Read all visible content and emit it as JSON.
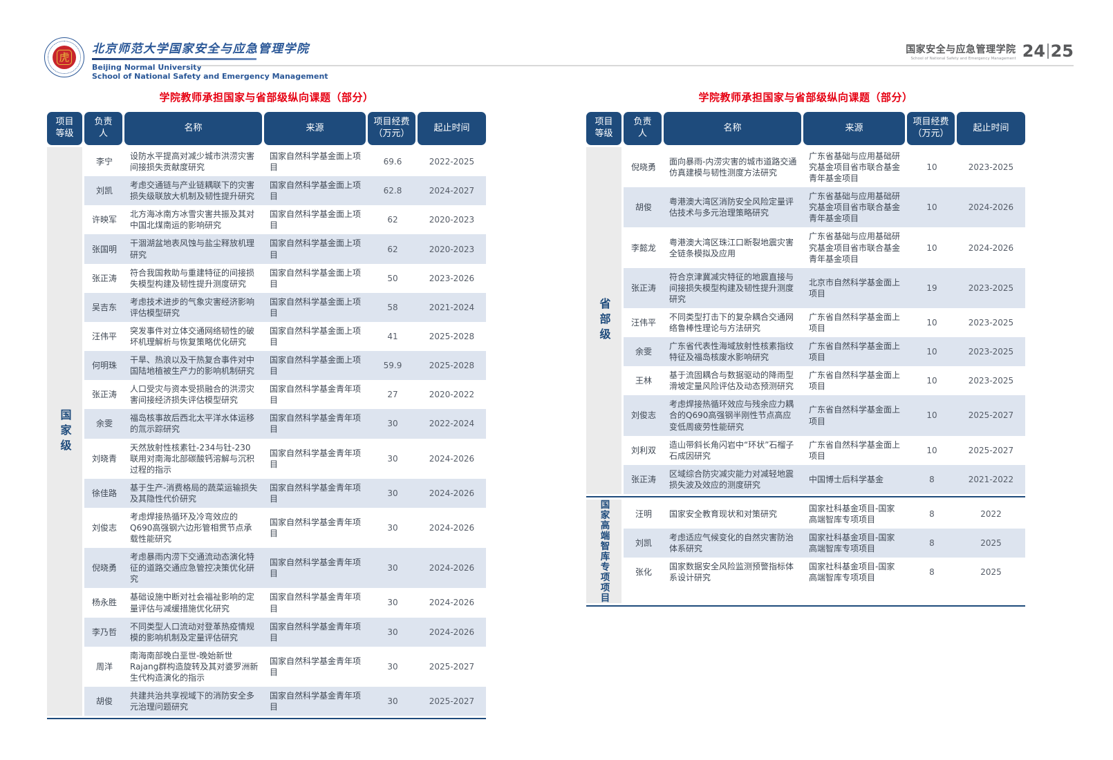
{
  "header": {
    "logo": {
      "seal_glyph": "虎",
      "cn_title": "北京师范大学国家安全与应急管理学院",
      "en_line1": "Beijing Normal University",
      "en_line2": "School of National Safety and Emergency Management"
    },
    "right": {
      "cn": "国家安全与应急管理学院",
      "en": "School of National Safety and Emergency Management",
      "page_left": "24",
      "page_right": "25"
    }
  },
  "colors": {
    "navy": "#1e4b7c",
    "title_red": "#e60012",
    "row_alt": "#dde4ef",
    "category_bg": "#ebebeb"
  },
  "tables": [
    {
      "title": "学院教师承担国家与省部级纵向课题（部分）",
      "columns": [
        "项目\n等级",
        "负责\n人",
        "名称",
        "来源",
        "项目经费\n（万元）",
        "起止时间"
      ],
      "sections": [
        {
          "category": "国家级",
          "rows": [
            [
              "李宁",
              "设防水平提高对减少城市洪涝灾害间接损失贡献度研究",
              "国家自然科学基金面上项目",
              "69.6",
              "2022-2025"
            ],
            [
              "刘凯",
              "考虑交通链与产业链耦联下的灾害损失级联放大机制及韧性提升研究",
              "国家自然科学基金面上项目",
              "62.8",
              "2024-2027"
            ],
            [
              "许映军",
              "北方海冰南方冰雪灾害共振及其对中国北煤南运的影响研究",
              "国家自然科学基金面上项目",
              "62",
              "2020-2023"
            ],
            [
              "张国明",
              "干涸湖盆地表风蚀与盐尘释放机理研究",
              "国家自然科学基金面上项目",
              "62",
              "2020-2023"
            ],
            [
              "张正涛",
              "符合我国救助与重建特征的间接损失模型构建及韧性提升测度研究",
              "国家自然科学基金面上项目",
              "50",
              "2023-2026"
            ],
            [
              "吴吉东",
              "考虑技术进步的气象灾害经济影响评估模型研究",
              "国家自然科学基金面上项目",
              "58",
              "2021-2024"
            ],
            [
              "汪伟平",
              "突发事件对立体交通网络韧性的破坏机理解析与恢复策略优化研究",
              "国家自然科学基金面上项目",
              "41",
              "2025-2028"
            ],
            [
              "何明珠",
              "干旱、热浪以及干热复合事件对中国陆地植被生产力的影响机制研究",
              "国家自然科学基金面上项目",
              "59.9",
              "2025-2028"
            ],
            [
              "张正涛",
              "人口受灾与资本受损融合的洪涝灾害间接经济损失评估模型研究",
              "国家自然科学基金青年项目",
              "27",
              "2020-2022"
            ],
            [
              "余雯",
              "福岛核事故后西北太平洋水体运移的氚示踪研究",
              "国家自然科学基金青年项目",
              "30",
              "2022-2024"
            ],
            [
              "刘晓青",
              "天然放射性核素钍-234与钍-230联用对南海北部碳酸钙溶解与沉积过程的指示",
              "国家自然科学基金青年项目",
              "30",
              "2024-2026"
            ],
            [
              "徐佳路",
              "基于生产-消费格局的蔬菜运输损失及其隐性代价研究",
              "国家自然科学基金青年项目",
              "30",
              "2024-2026"
            ],
            [
              "刘俊志",
              "考虑焊接热循环及冷弯效应的Q690高强钢六边形管相贯节点承载性能研究",
              "国家自然科学基金青年项目",
              "30",
              "2024-2026"
            ],
            [
              "倪晓勇",
              "考虑暴雨内涝下交通流动态演化特征的道路交通应急管控决策优化研究",
              "国家自然科学基金青年项目",
              "30",
              "2024-2026"
            ],
            [
              "杨永胜",
              "基础设施中断对社会福祉影响的定量评估与减缓措施优化研究",
              "国家自然科学基金青年项目",
              "30",
              "2024-2026"
            ],
            [
              "李乃哲",
              "不同类型人口流动对登革热疫情规模的影响机制及定量评估研究",
              "国家自然科学基金青年项目",
              "30",
              "2024-2026"
            ],
            [
              "周洋",
              "南海南部晚白垩世-晚始新世Rajang群构造旋转及其对婆罗洲新生代构造演化的指示",
              "国家自然科学基金青年项目",
              "30",
              "2025-2027"
            ],
            [
              "胡俊",
              "共建共治共享视域下的消防安全多元治理问题研究",
              "国家自然科学基金青年项目",
              "30",
              "2025-2027"
            ]
          ]
        }
      ]
    },
    {
      "title": "学院教师承担国家与省部级纵向课题（部分）",
      "columns": [
        "项目\n等级",
        "负责\n人",
        "名称",
        "来源",
        "项目经费\n（万元）",
        "起止时间"
      ],
      "sections": [
        {
          "category": "省部级",
          "rows": [
            [
              "倪晓勇",
              "面向暴雨-内涝灾害的城市道路交通仿真建模与韧性测度方法研究",
              "广东省基础与应用基础研究基金项目省市联合基金青年基金项目",
              "10",
              "2023-2025"
            ],
            [
              "胡俊",
              "粤港澳大湾区消防安全风险定量评估技术与多元治理策略研究",
              "广东省基础与应用基础研究基金项目省市联合基金青年基金项目",
              "10",
              "2024-2026"
            ],
            [
              "李懿龙",
              "粤港澳大湾区珠江口断裂地震灾害全链条模拟及应用",
              "广东省基础与应用基础研究基金项目省市联合基金青年基金项目",
              "10",
              "2024-2026"
            ],
            [
              "张正涛",
              "符合京津冀减灾特征的地震直接与间接损失模型构建及韧性提升测度研究",
              "北京市自然科学基金面上项目",
              "19",
              "2023-2025"
            ],
            [
              "汪伟平",
              "不同类型打击下的复杂耦合交通网络鲁棒性理论与方法研究",
              "广东省自然科学基金面上项目",
              "10",
              "2023-2025"
            ],
            [
              "余雯",
              "广东省代表性海域放射性核素指纹特征及福岛核废水影响研究",
              "广东省自然科学基金面上项目",
              "10",
              "2023-2025"
            ],
            [
              "王林",
              "基于流固耦合与数据驱动的降雨型滑坡定量风险评估及动态预测研究",
              "广东省自然科学基金面上项目",
              "10",
              "2023-2025"
            ],
            [
              "刘俊志",
              "考虑焊接热循环效应与残余应力耦合的Q690高强钢半刚性节点高应变低周疲劳性能研究",
              "广东省自然科学基金面上项目",
              "10",
              "2025-2027"
            ],
            [
              "刘利双",
              "造山带斜长角闪岩中“环状”石榴子石成因研究",
              "广东省自然科学基金面上项目",
              "10",
              "2025-2027"
            ],
            [
              "张正涛",
              "区域综合防灾减灾能力对减轻地震损失波及效应的测度研究",
              "中国博士后科学基金",
              "8",
              "2021-2022"
            ]
          ]
        },
        {
          "category": "国家高端智库专项项目",
          "rows": [
            [
              "汪明",
              "国家安全教育现状和对策研究",
              "国家社科基金项目-国家高端智库专项项目",
              "8",
              "2022"
            ],
            [
              "刘凯",
              "考虑适应气候变化的自然灾害防治体系研究",
              "国家社科基金项目-国家高端智库专项项目",
              "8",
              "2025"
            ],
            [
              "张化",
              "国家数据安全风险监测预警指标体系设计研究",
              "国家社科基金项目-国家高端智库专项项目",
              "8",
              "2025"
            ]
          ]
        }
      ]
    }
  ]
}
